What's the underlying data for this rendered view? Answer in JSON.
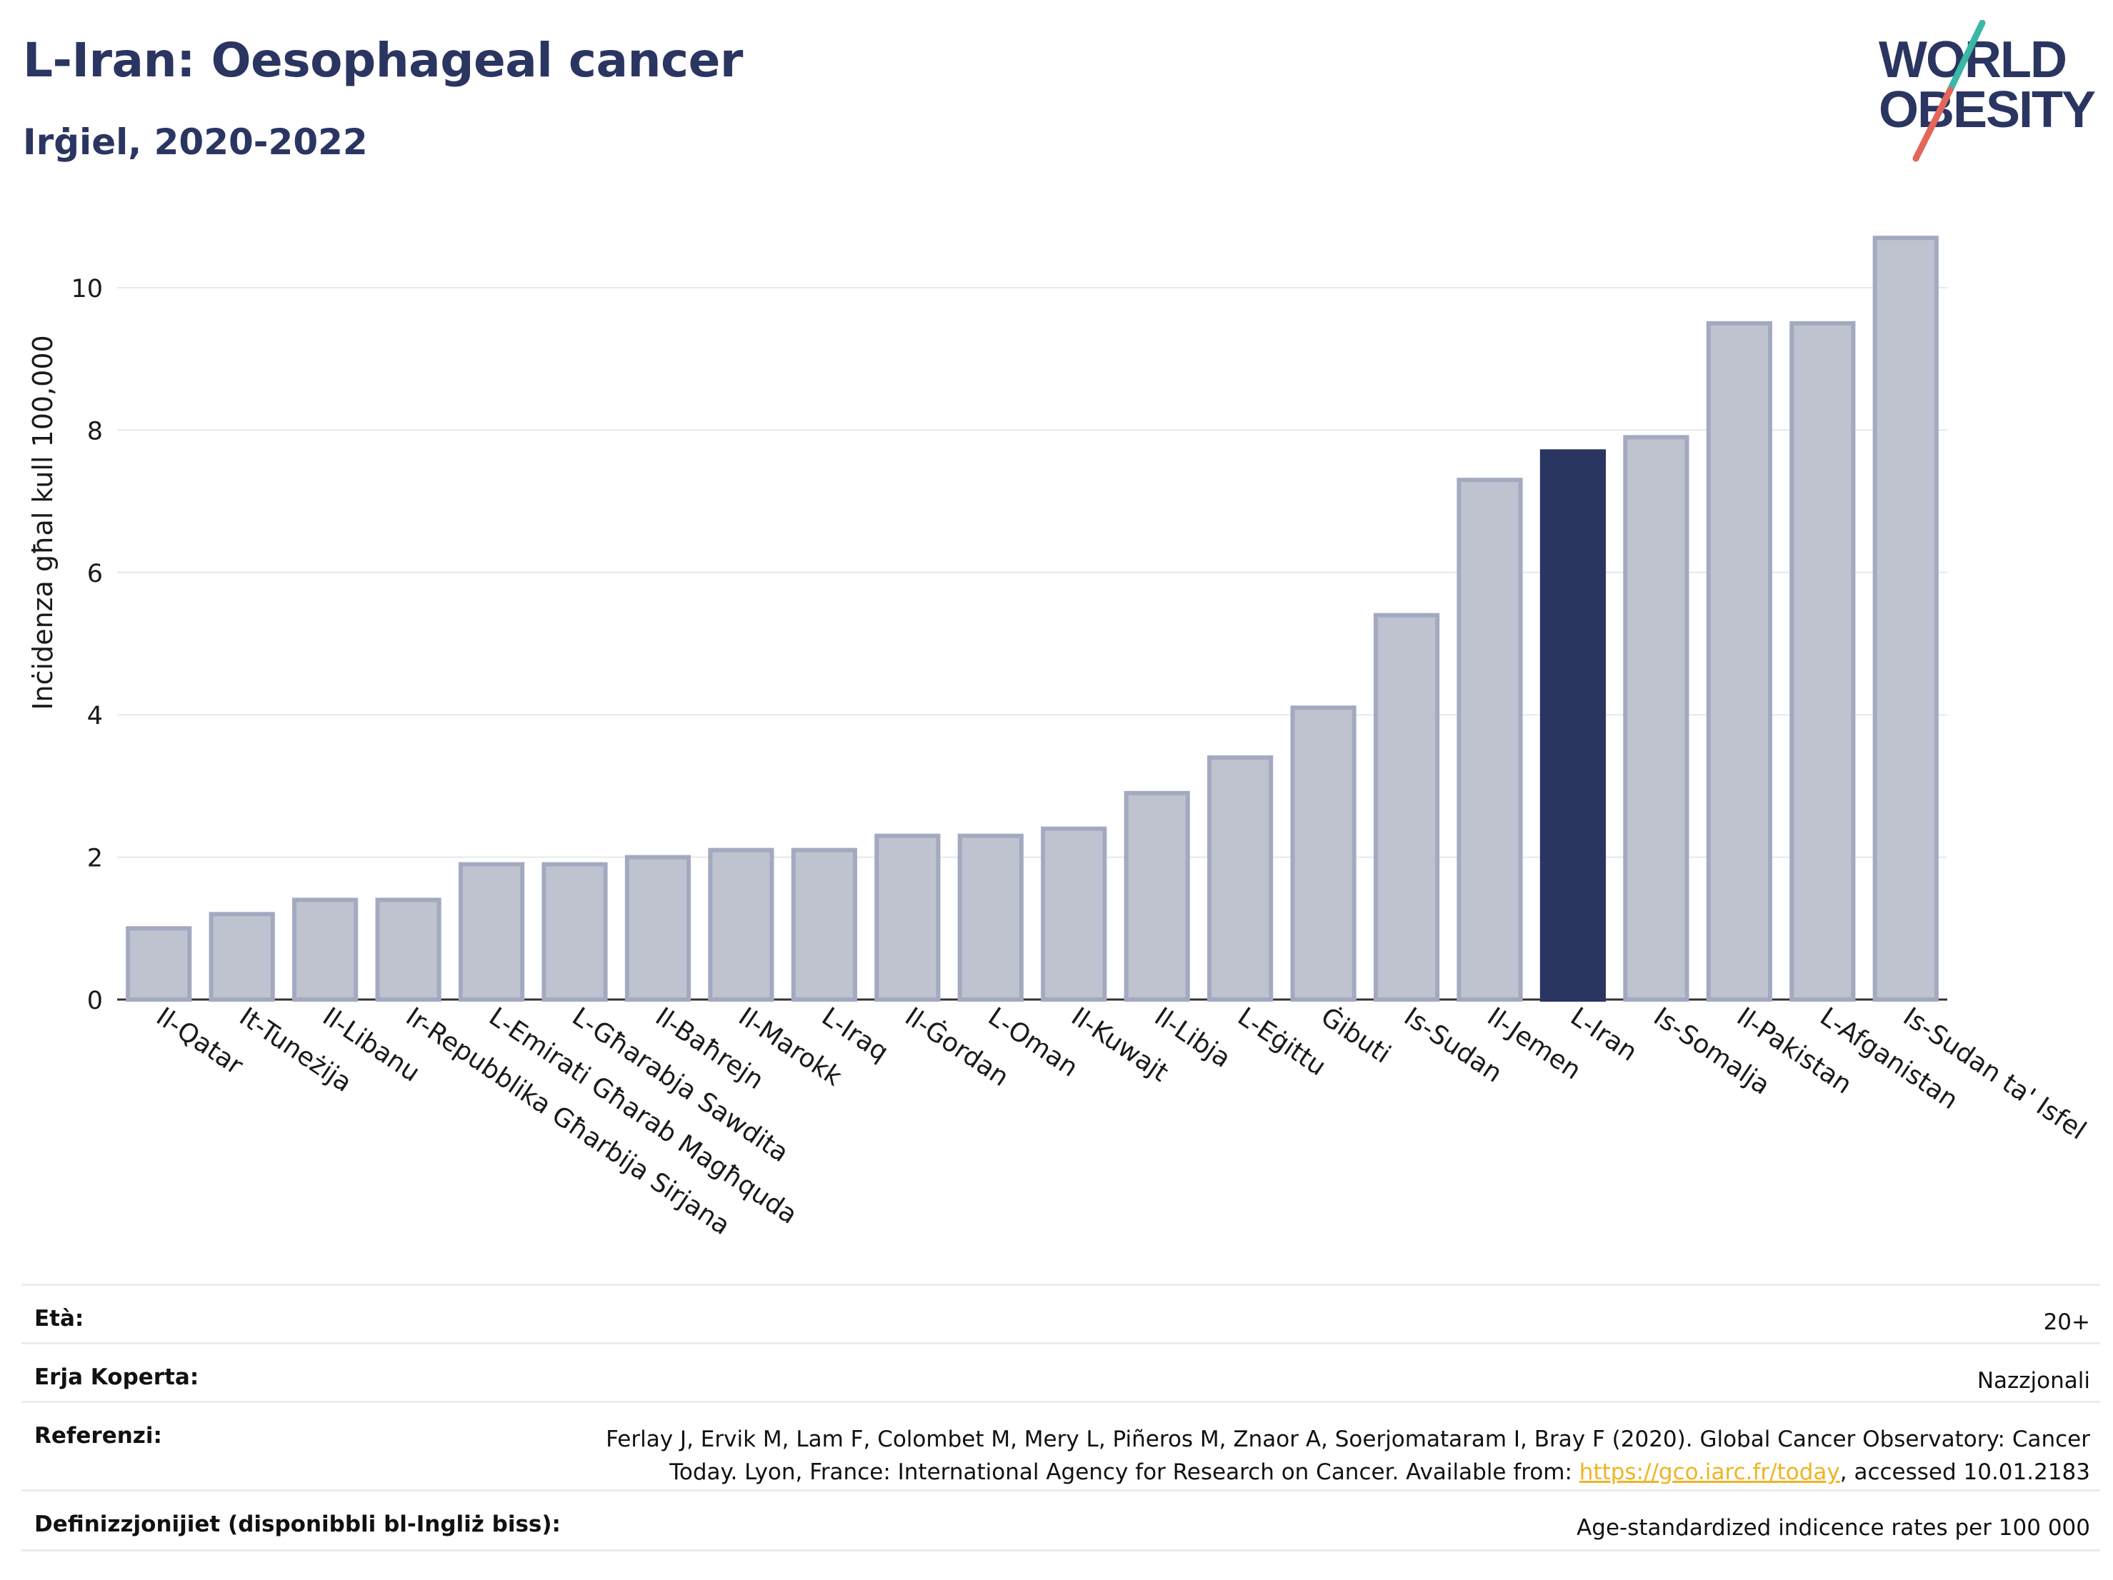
{
  "header": {
    "title": "L-Iran: Oesophageal cancer",
    "subtitle": "Irġiel, 2020-2022"
  },
  "logo": {
    "line1": "WORLD",
    "line2": "OBESITY",
    "colors": {
      "text": "#2b3561",
      "slash_top": "#3ab7a5",
      "slash_bottom": "#e2675a"
    }
  },
  "colors": {
    "bar_fill": "#bfc3d0",
    "bar_stroke": "#a3a9c0",
    "highlight": "#2b3561",
    "grid": "#e6e8ee",
    "link": "#f0b323"
  },
  "chart_data": {
    "type": "bar",
    "ylabel": "Inċidenza għal kull 100,000",
    "ylim": [
      0,
      11
    ],
    "yticks": [
      0,
      2,
      4,
      6,
      8,
      10
    ],
    "grid": true,
    "highlight": "L-Iran",
    "categories": [
      "Il-Qatar",
      "It-Tuneżija",
      "Il-Libanu",
      "Ir-Repubblika Għarbija Sirjana",
      "L-Emirati Għarab Magħquda",
      "L-Għarabja Sawdita",
      "Il-Baħrejn",
      "Il-Marokk",
      "L-Iraq",
      "Il-Ġordan",
      "L-Oman",
      "Il-Kuwajt",
      "Il-Libja",
      "L-Eġittu",
      "Ġibuti",
      "Is-Sudan",
      "Il-Jemen",
      "L-Iran",
      "Is-Somalja",
      "Il-Pakistan",
      "L-Afganistan",
      "Is-Sudan ta' Isfel"
    ],
    "values": [
      1.0,
      1.2,
      1.4,
      1.4,
      1.9,
      1.9,
      2.0,
      2.1,
      2.1,
      2.3,
      2.3,
      2.4,
      2.9,
      3.4,
      4.1,
      5.4,
      7.3,
      7.7,
      7.9,
      9.5,
      9.5,
      10.7
    ]
  },
  "meta": [
    {
      "label": "Età:",
      "value": "20+"
    },
    {
      "label": "Erja Koperta:",
      "value": "Nazzjonali"
    },
    {
      "label": "Referenzi:",
      "value_line1": "Ferlay J, Ervik M, Lam F, Colombet M, Mery L, Piñeros M, Znaor A, Soerjomataram I, Bray F (2020). Global Cancer Observatory: Cancer",
      "value_line2_pre": "Today. Lyon, France: International Agency for Research on Cancer. Available from: ",
      "value_link": "https://gco.iarc.fr/today",
      "value_line2_post": ", accessed 10.01.2183"
    },
    {
      "label": "Definizzjonijiet (disponibbli bl-Ingliż biss):",
      "value": "Age-standardized indicence rates per 100 000"
    }
  ]
}
